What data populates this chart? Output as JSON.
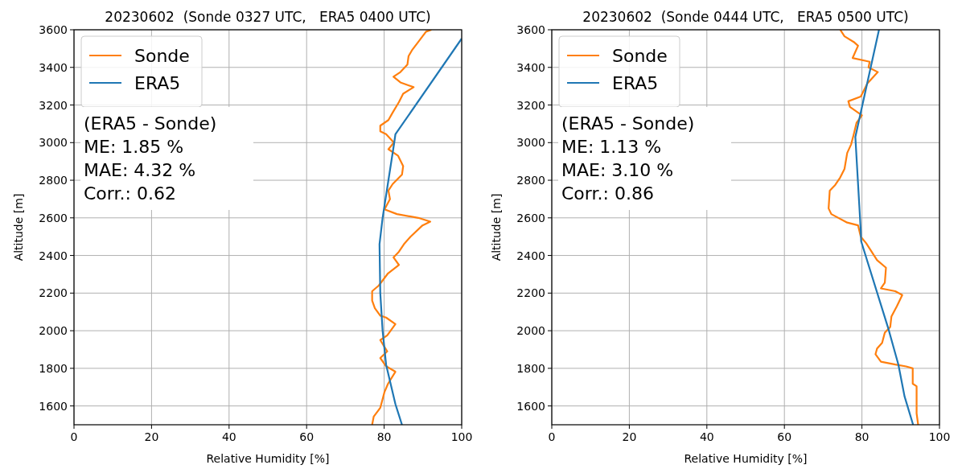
{
  "chart_data": [
    {
      "type": "line",
      "title": "20230602  (Sonde 0327 UTC,   ERA5 0400 UTC)",
      "xlabel": "Relative Humidity [%]",
      "ylabel": "Altitude [m]",
      "xlim": [
        0,
        100
      ],
      "xticks": [
        0,
        20,
        40,
        60,
        80,
        100
      ],
      "ylim": [
        1500,
        3600
      ],
      "yticks": [
        1600,
        1800,
        2000,
        2200,
        2400,
        2600,
        2800,
        3000,
        3200,
        3400,
        3600
      ],
      "grid": true,
      "legend": "top left",
      "line_style": "solid",
      "annotations": [
        "(ERA5 - Sonde)",
        "ME: 1.85 %",
        "MAE: 4.32 %",
        "Corr.: 0.62"
      ],
      "series": [
        {
          "name": "Sonde",
          "color": "#ff7f0e",
          "x": [
            76.9,
            77.3,
            79,
            80.1,
            81,
            82.9,
            80.5,
            79,
            80.8,
            79,
            80.8,
            82.9,
            80.5,
            79,
            77.6,
            76.9,
            76.9,
            78.6,
            79.7,
            81,
            83.8,
            82.4,
            83.8,
            85.1,
            86.8,
            89.9,
            91.9,
            88.8,
            83.3,
            80.1,
            81.5,
            81.1,
            82.2,
            84.6,
            84.9,
            83.6,
            81.1,
            82.5,
            80.5,
            79,
            79,
            81.1,
            82.2,
            83.8,
            84.9,
            87.6,
            84.2,
            82.4,
            84.2,
            86,
            86.3,
            87.3,
            88.8,
            90.8,
            92.2
          ],
          "values": [
            1500,
            1543,
            1590,
            1675,
            1718,
            1782,
            1811,
            1855,
            1890,
            1950,
            1975,
            2035,
            2070,
            2080,
            2120,
            2160,
            2210,
            2240,
            2270,
            2305,
            2350,
            2390,
            2420,
            2460,
            2500,
            2560,
            2580,
            2600,
            2620,
            2645,
            2700,
            2745,
            2780,
            2830,
            2875,
            2930,
            2965,
            3000,
            3045,
            3060,
            3090,
            3120,
            3160,
            3215,
            3260,
            3295,
            3320,
            3350,
            3375,
            3415,
            3460,
            3495,
            3535,
            3590,
            3600
          ]
        },
        {
          "name": "ERA5",
          "color": "#1f77b4",
          "x": [
            84.6,
            82.9,
            80.5,
            79.6,
            79,
            78.8,
            79.6,
            82.6,
            82.9,
            100
          ],
          "values": [
            1500,
            1610,
            1820,
            2000,
            2200,
            2460,
            2600,
            3000,
            3044,
            3553
          ]
        }
      ]
    },
    {
      "type": "line",
      "title": "20230602  (Sonde 0444 UTC,   ERA5 0500 UTC)",
      "xlabel": "Relative Humidity [%]",
      "ylabel": "Altitude [m]",
      "xlim": [
        0,
        100
      ],
      "xticks": [
        0,
        20,
        40,
        60,
        80,
        100
      ],
      "ylim": [
        1500,
        3600
      ],
      "yticks": [
        1600,
        1800,
        2000,
        2200,
        2400,
        2600,
        2800,
        3000,
        3200,
        3400,
        3600
      ],
      "grid": true,
      "legend": "top left",
      "line_style": "solid",
      "annotations": [
        "(ERA5 - Sonde)",
        "ME: 1.13 %",
        "MAE: 3.10 %",
        "Corr.: 0.86"
      ],
      "series": [
        {
          "name": "Sonde",
          "color": "#ff7f0e",
          "x": [
            94.5,
            94.1,
            94.1,
            93.1,
            93.1,
            91.4,
            88.6,
            84.9,
            83.5,
            83.9,
            85.2,
            85.9,
            87.3,
            87.6,
            89,
            90.4,
            88.6,
            84.9,
            85.9,
            86.2,
            83.9,
            82.5,
            81.1,
            79.7,
            79,
            76.2,
            72.1,
            71.4,
            71.7,
            73.1,
            74.4,
            75.5,
            76.2,
            77.2,
            77.9,
            78.6,
            80,
            76.9,
            76.5,
            79.7,
            81.4,
            84.1,
            81.7,
            82,
            77.6,
            79,
            77.9,
            75.5,
            74.4
          ],
          "values": [
            1500,
            1560,
            1705,
            1718,
            1800,
            1810,
            1820,
            1835,
            1875,
            1905,
            1935,
            1990,
            2020,
            2075,
            2130,
            2190,
            2210,
            2225,
            2255,
            2335,
            2375,
            2420,
            2465,
            2500,
            2560,
            2575,
            2620,
            2650,
            2745,
            2775,
            2815,
            2860,
            2945,
            2990,
            3045,
            3105,
            3145,
            3190,
            3220,
            3245,
            3315,
            3375,
            3400,
            3430,
            3450,
            3515,
            3535,
            3565,
            3600
          ]
        },
        {
          "name": "ERA5",
          "color": "#1f77b4",
          "x": [
            93.2,
            91,
            89.4,
            86.9,
            79.8,
            79.7,
            78.3,
            84.4
          ],
          "values": [
            1500,
            1650,
            1820,
            2005,
            2475,
            2530,
            3030,
            3600
          ]
        }
      ]
    }
  ]
}
